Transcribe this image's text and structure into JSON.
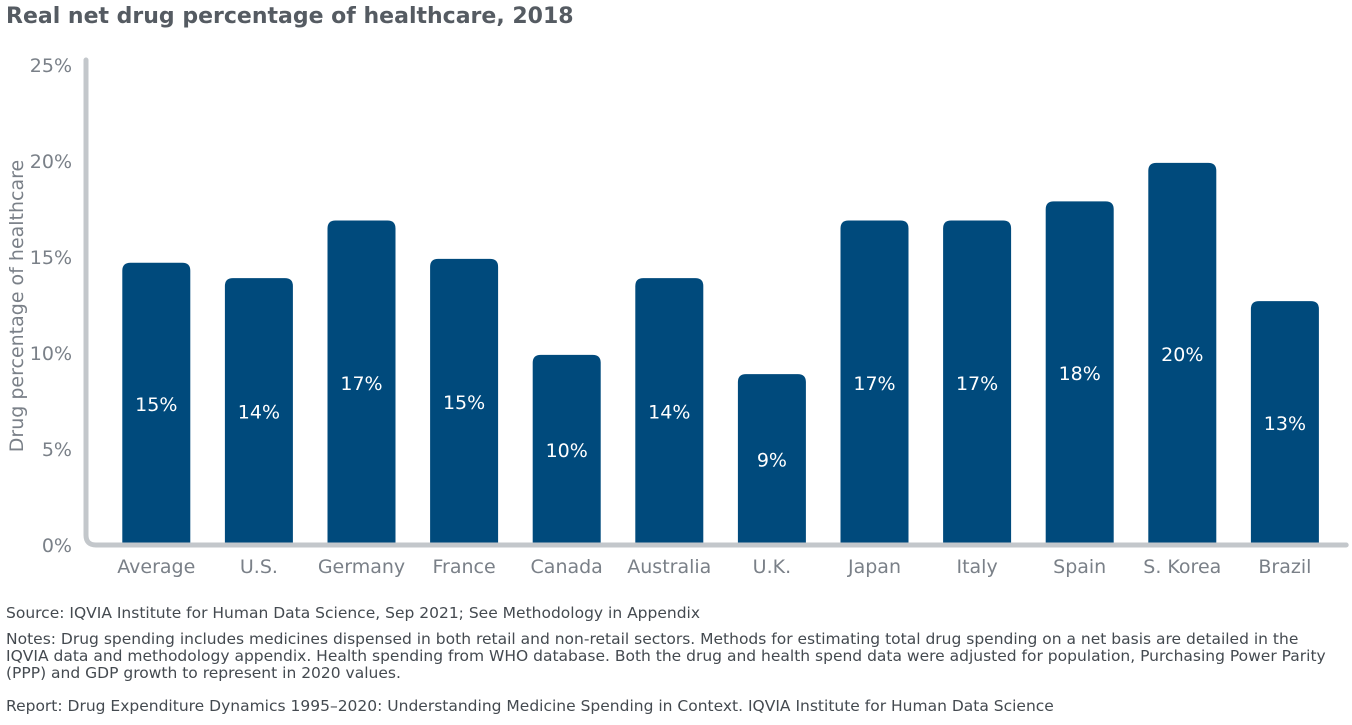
{
  "chart_data": {
    "type": "bar",
    "title": "Real net drug percentage of healthcare, 2018",
    "ylabel": "Drug percentage of healthcare",
    "xlabel": "",
    "ylim": [
      0,
      25
    ],
    "yticks": [
      0,
      5,
      10,
      15,
      20,
      25
    ],
    "ytick_suffix": "%",
    "grid": false,
    "bar_color": "#004a7c",
    "categories": [
      "Average",
      "U.S.",
      "Germany",
      "France",
      "Canada",
      "Australia",
      "U.K.",
      "Japan",
      "Italy",
      "Spain",
      "S. Korea",
      "Brazil"
    ],
    "values": [
      14.7,
      13.9,
      16.9,
      14.9,
      9.9,
      13.9,
      8.9,
      16.9,
      16.9,
      17.9,
      19.9,
      12.7
    ],
    "data_labels": [
      "15%",
      "14%",
      "17%",
      "15%",
      "10%",
      "14%",
      "9%",
      "17%",
      "17%",
      "18%",
      "20%",
      "13%"
    ]
  },
  "footer": {
    "source": "Source: IQVIA Institute for Human Data Science, Sep 2021; See Methodology in Appendix",
    "notes": "Notes: Drug spending includes medicines dispensed in both retail and non-retail sectors. Methods for estimating total drug spending on a net basis are detailed in the IQVIA data and methodology appendix. Health spending from WHO database. Both the drug and health spend data were adjusted for population, Purchasing Power Parity (PPP) and GDP growth to represent in 2020 values.",
    "report": "Report: Drug Expenditure Dynamics 1995–2020: Understanding Medicine Spending in Context. IQVIA Institute for Human Data Science"
  }
}
